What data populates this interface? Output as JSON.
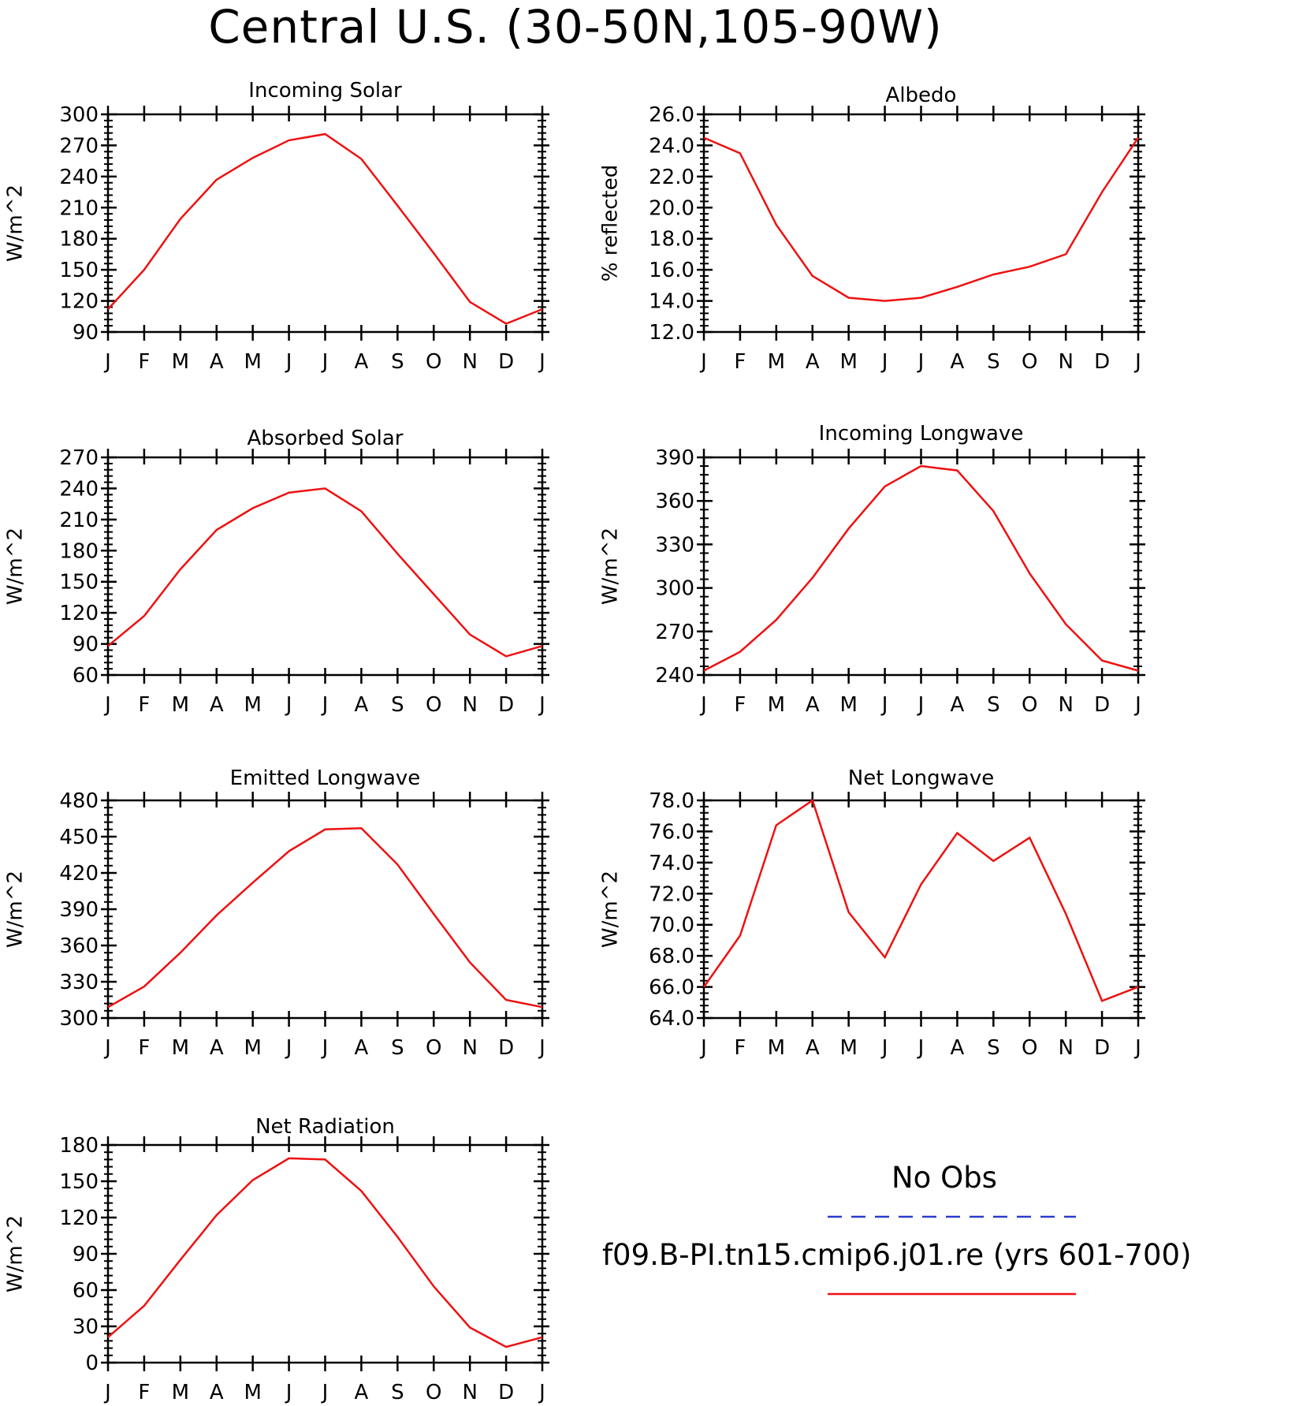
{
  "title": "Central U.S. (30-50N,105-90W)",
  "month_labels": [
    "J",
    "F",
    "M",
    "A",
    "M",
    "J",
    "J",
    "A",
    "S",
    "O",
    "N",
    "D",
    "J"
  ],
  "legend": {
    "obs_label": "No Obs",
    "obs_color": "#2a3ccf",
    "model_label": "f09.B-PI.tn15.cmip6.j01.re (yrs 601-700)",
    "model_color": "#ee1111"
  },
  "chart_data": [
    {
      "type": "line",
      "title": "Incoming Solar",
      "ylabel": "W/m^2",
      "ylim": [
        90,
        300
      ],
      "yticks": [
        "90",
        "120",
        "150",
        "180",
        "210",
        "240",
        "270",
        "300"
      ],
      "categories": [
        "J",
        "F",
        "M",
        "A",
        "M",
        "J",
        "J",
        "A",
        "S",
        "O",
        "N",
        "D",
        "J"
      ],
      "series": [
        {
          "name": "f09.B-PI.tn15.cmip6.j01.re (yrs 601-700)",
          "values": [
            112,
            150,
            199,
            237,
            258,
            275,
            281,
            257,
            212,
            166,
            119,
            98,
            112
          ]
        }
      ]
    },
    {
      "type": "line",
      "title": "Albedo",
      "ylabel": "% reflected",
      "ylim": [
        12.0,
        26.0
      ],
      "yticks": [
        "12.0",
        "14.0",
        "16.0",
        "18.0",
        "20.0",
        "22.0",
        "24.0",
        "26.0"
      ],
      "categories": [
        "J",
        "F",
        "M",
        "A",
        "M",
        "J",
        "J",
        "A",
        "S",
        "O",
        "N",
        "D",
        "J"
      ],
      "series": [
        {
          "name": "f09.B-PI.tn15.cmip6.j01.re (yrs 601-700)",
          "values": [
            24.5,
            23.5,
            18.9,
            15.6,
            14.2,
            14.0,
            14.2,
            14.9,
            15.7,
            16.2,
            17.0,
            21.0,
            24.5
          ]
        }
      ]
    },
    {
      "type": "line",
      "title": "Absorbed Solar",
      "ylabel": "W/m^2",
      "ylim": [
        60,
        270
      ],
      "yticks": [
        "60",
        "90",
        "120",
        "150",
        "180",
        "210",
        "240",
        "270"
      ],
      "categories": [
        "J",
        "F",
        "M",
        "A",
        "M",
        "J",
        "J",
        "A",
        "S",
        "O",
        "N",
        "D",
        "J"
      ],
      "series": [
        {
          "name": "f09.B-PI.tn15.cmip6.j01.re (yrs 601-700)",
          "values": [
            88,
            117,
            162,
            200,
            221,
            236,
            240,
            218,
            177,
            138,
            99,
            78,
            88
          ]
        }
      ]
    },
    {
      "type": "line",
      "title": "Incoming Longwave",
      "ylabel": "W/m^2",
      "ylim": [
        240,
        390
      ],
      "yticks": [
        "240",
        "270",
        "300",
        "330",
        "360",
        "390"
      ],
      "categories": [
        "J",
        "F",
        "M",
        "A",
        "M",
        "J",
        "J",
        "A",
        "S",
        "O",
        "N",
        "D",
        "J"
      ],
      "series": [
        {
          "name": "f09.B-PI.tn15.cmip6.j01.re (yrs 601-700)",
          "values": [
            243,
            256,
            278,
            307,
            341,
            370,
            384,
            381,
            353,
            310,
            275,
            250,
            243
          ]
        }
      ]
    },
    {
      "type": "line",
      "title": "Emitted Longwave",
      "ylabel": "W/m^2",
      "ylim": [
        300,
        480
      ],
      "yticks": [
        "300",
        "330",
        "360",
        "390",
        "420",
        "450",
        "480"
      ],
      "categories": [
        "J",
        "F",
        "M",
        "A",
        "M",
        "J",
        "J",
        "A",
        "S",
        "O",
        "N",
        "D",
        "J"
      ],
      "series": [
        {
          "name": "f09.B-PI.tn15.cmip6.j01.re (yrs 601-700)",
          "values": [
            309,
            326,
            354,
            385,
            412,
            438,
            456,
            457,
            427,
            386,
            346,
            315,
            309
          ]
        }
      ]
    },
    {
      "type": "line",
      "title": "Net Longwave",
      "ylabel": "W/m^2",
      "ylim": [
        64.0,
        78.0
      ],
      "yticks": [
        "64.0",
        "66.0",
        "68.0",
        "70.0",
        "72.0",
        "74.0",
        "76.0",
        "78.0"
      ],
      "categories": [
        "J",
        "F",
        "M",
        "A",
        "M",
        "J",
        "J",
        "A",
        "S",
        "O",
        "N",
        "D",
        "J"
      ],
      "series": [
        {
          "name": "f09.B-PI.tn15.cmip6.j01.re (yrs 601-700)",
          "values": [
            66.0,
            69.3,
            76.4,
            78.0,
            70.8,
            67.9,
            72.6,
            75.9,
            74.1,
            75.6,
            70.7,
            65.1,
            66.0
          ]
        }
      ]
    },
    {
      "type": "line",
      "title": "Net Radiation",
      "ylabel": "W/m^2",
      "ylim": [
        0,
        180
      ],
      "yticks": [
        "0",
        "30",
        "60",
        "90",
        "120",
        "150",
        "180"
      ],
      "categories": [
        "J",
        "F",
        "M",
        "A",
        "M",
        "J",
        "J",
        "A",
        "S",
        "O",
        "N",
        "D",
        "J"
      ],
      "series": [
        {
          "name": "f09.B-PI.tn15.cmip6.j01.re (yrs 601-700)",
          "values": [
            21,
            47,
            85,
            122,
            151,
            169,
            168,
            142,
            104,
            63,
            29,
            13,
            21
          ]
        }
      ]
    }
  ]
}
